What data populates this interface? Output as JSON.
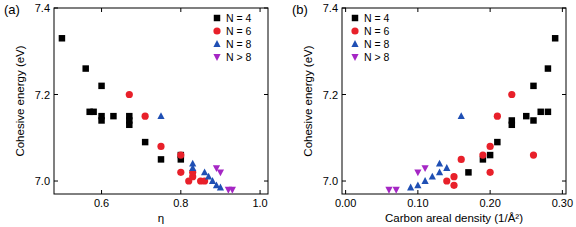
{
  "chart_data": [
    {
      "type": "scatter",
      "title": "(a)",
      "x_label": "η",
      "y_label": "Cohesive energy (eV)",
      "xlim": [
        0.48,
        1.02
      ],
      "xticks": [
        0.6,
        0.8,
        {
          "value": 1,
          "label": "1.0"
        }
      ],
      "ylim": [
        6.97,
        7.4
      ],
      "yticks": [
        {
          "value": 7,
          "label": "7.0"
        },
        7.2,
        7.4
      ],
      "legend": "upper right",
      "series": [
        {
          "name": "N = 4",
          "color": "#000000",
          "marker": "square",
          "x": [
            0.5,
            0.56,
            0.57,
            0.58,
            0.6,
            0.6,
            0.6,
            0.63,
            0.67,
            0.67,
            0.67,
            0.71,
            0.75,
            0.8,
            0.8
          ],
          "values": [
            7.33,
            7.26,
            7.16,
            7.16,
            7.22,
            7.15,
            7.14,
            7.15,
            7.14,
            7.13,
            7.15,
            7.09,
            7.05,
            7.05,
            7.06
          ]
        },
        {
          "name": "N = 6",
          "color": "#e8202a",
          "marker": "circle",
          "x": [
            0.67,
            0.71,
            0.75,
            0.8,
            0.8,
            0.82,
            0.83,
            0.85,
            0.86,
            0.83
          ],
          "values": [
            7.2,
            7.15,
            7.08,
            7.06,
            7.02,
            7.0,
            7.01,
            7.0,
            7.0,
            7.02
          ]
        },
        {
          "name": "N = 8",
          "color": "#1f4fb4",
          "marker": "triangle",
          "x": [
            0.75,
            0.83,
            0.83,
            0.86,
            0.87,
            0.88,
            0.89,
            0.9
          ],
          "values": [
            7.15,
            7.04,
            7.03,
            7.02,
            7.01,
            7.0,
            6.99,
            6.985
          ]
        },
        {
          "name": "N > 8",
          "color": "#a526c4",
          "marker": "triangle-down",
          "x": [
            0.89,
            0.9,
            0.92,
            0.93
          ],
          "values": [
            7.03,
            7.02,
            6.98,
            6.98
          ]
        }
      ]
    },
    {
      "type": "scatter",
      "title": "(b)",
      "x_label": "Carbon areal density (1/Å²)",
      "y_label": "Cohesive energy (eV)",
      "xlim": [
        -0.005,
        0.305
      ],
      "xticks": [
        {
          "value": 0,
          "label": "0.00"
        },
        {
          "value": 0.1,
          "label": "0.10"
        },
        {
          "value": 0.2,
          "label": "0.20"
        },
        {
          "value": 0.3,
          "label": "0.30"
        }
      ],
      "ylim": [
        6.97,
        7.4
      ],
      "yticks": [
        {
          "value": 7,
          "label": "7.0"
        },
        7.2,
        7.4
      ],
      "legend": "upper left",
      "series": [
        {
          "name": "N = 4",
          "color": "#000000",
          "marker": "square",
          "x": [
            0.29,
            0.28,
            0.26,
            0.25,
            0.26,
            0.27,
            0.28,
            0.23,
            0.23,
            0.21,
            0.2,
            0.19,
            0.17
          ],
          "values": [
            7.33,
            7.26,
            7.22,
            7.15,
            7.14,
            7.16,
            7.16,
            7.14,
            7.13,
            7.09,
            7.06,
            7.05,
            7.02
          ]
        },
        {
          "name": "N = 6",
          "color": "#e8202a",
          "marker": "circle",
          "x": [
            0.23,
            0.21,
            0.26,
            0.2,
            0.19,
            0.2,
            0.16,
            0.15,
            0.14,
            0.15
          ],
          "values": [
            7.2,
            7.15,
            7.06,
            7.08,
            7.06,
            7.02,
            7.05,
            7.01,
            7.0,
            6.99
          ]
        },
        {
          "name": "N = 8",
          "color": "#1f4fb4",
          "marker": "triangle",
          "x": [
            0.16,
            0.14,
            0.13,
            0.12,
            0.11,
            0.1,
            0.09,
            0.13
          ],
          "values": [
            7.15,
            7.03,
            7.02,
            7.01,
            7.0,
            6.99,
            6.985,
            7.04
          ]
        },
        {
          "name": "N > 8",
          "color": "#a526c4",
          "marker": "triangle-down",
          "x": [
            0.1,
            0.11,
            0.07,
            0.06
          ],
          "values": [
            7.02,
            7.03,
            6.98,
            6.98
          ]
        }
      ]
    }
  ]
}
